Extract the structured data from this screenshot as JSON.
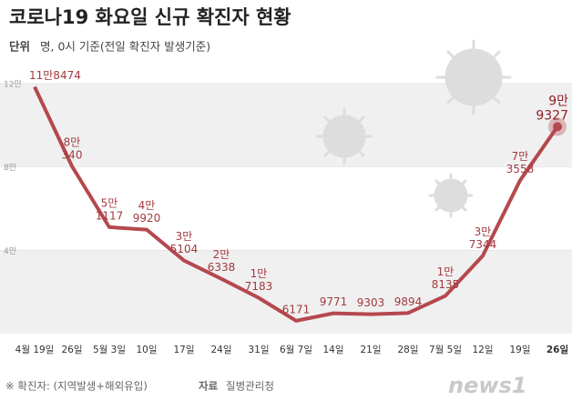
{
  "chart_data": {
    "type": "line",
    "title": "코로나19 화요일 신규 확진자 현황",
    "subtitle_label": "단위",
    "subtitle": "명, 0시 기준(전일 확진자 발생기준)",
    "footnote": "※ 확진자: (지역발생+해외유입)",
    "source_label": "자료",
    "source": "질병관리청",
    "logo": "news1",
    "categories": [
      "4월 19일",
      "26일",
      "5월 3일",
      "10일",
      "17일",
      "24일",
      "31일",
      "6월 7일",
      "14일",
      "21일",
      "28일",
      "7월 5일",
      "12일",
      "19일",
      "26일"
    ],
    "values": [
      118474,
      80340,
      51117,
      49920,
      35104,
      26338,
      17183,
      6171,
      9771,
      9303,
      9894,
      18135,
      37344,
      73558,
      99327
    ],
    "value_labels": [
      [
        "11만8474"
      ],
      [
        "8만",
        "340"
      ],
      [
        "5만",
        "1117"
      ],
      [
        "4만",
        "9920"
      ],
      [
        "3만",
        "5104"
      ],
      [
        "2만",
        "6338"
      ],
      [
        "1만",
        "7183"
      ],
      [
        "6171"
      ],
      [
        "9771"
      ],
      [
        "9303"
      ],
      [
        "9894"
      ],
      [
        "1만",
        "8135"
      ],
      [
        "3만",
        "7344"
      ],
      [
        "7만",
        "3558"
      ],
      [
        "9만",
        "9327"
      ]
    ],
    "color": "#b5484e",
    "ylim": [
      0,
      120000
    ],
    "yticks": [
      {
        "value": 40000,
        "label": "4만"
      },
      {
        "value": 80000,
        "label": "8만"
      },
      {
        "value": 120000,
        "label": "12만"
      }
    ]
  }
}
